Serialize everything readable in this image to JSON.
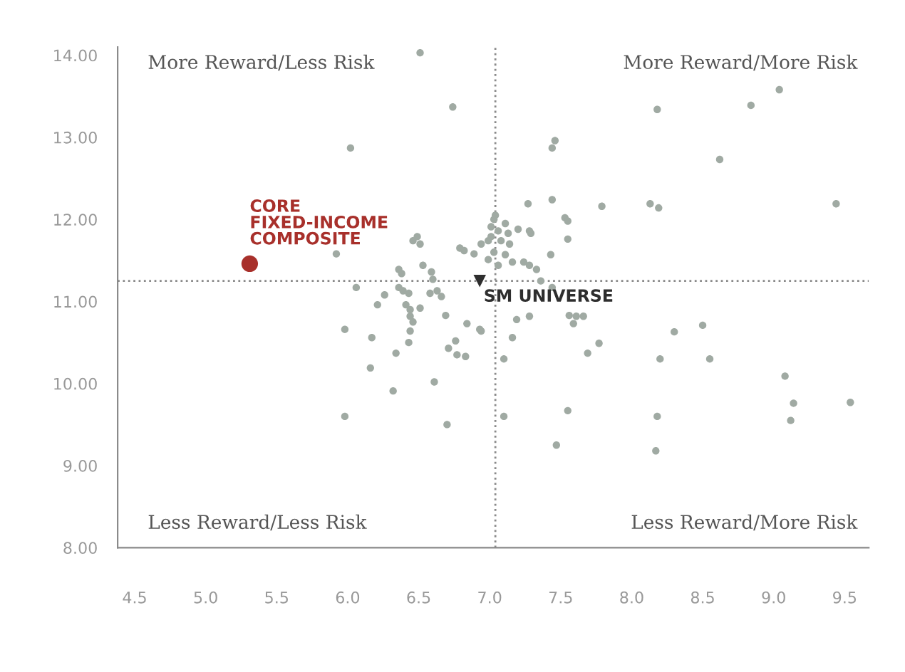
{
  "chart_data": {
    "type": "scatter",
    "xlim": [
      4.38,
      9.67
    ],
    "ylim": [
      8,
      14.1
    ],
    "xticks": [
      4.5,
      {
        "value": 5,
        "label": "5.0"
      },
      5.5,
      {
        "value": 6,
        "label": "6.0"
      },
      6.5,
      {
        "value": 7,
        "label": "7.0"
      },
      7.5,
      {
        "value": 8,
        "label": "8.0"
      },
      8.5,
      {
        "value": 9,
        "label": "9.0"
      },
      9.5
    ],
    "yticks": [
      {
        "value": 8,
        "label": "8.00"
      },
      {
        "value": 9,
        "label": "9.00"
      },
      {
        "value": 10,
        "label": "10.00"
      },
      {
        "value": 11,
        "label": "11.00"
      },
      {
        "value": 12,
        "label": "12.00"
      },
      {
        "value": 13,
        "label": "13.00"
      },
      {
        "value": 14,
        "label": "14.00"
      }
    ],
    "grid": false,
    "legend": false,
    "marker": "circle",
    "ref_lines": [
      {
        "axis": "x",
        "value": 7.04,
        "color": "#8a8a8a",
        "line_style": "dotted"
      },
      {
        "axis": "y",
        "value": 11.25,
        "color": "#8a8a8a",
        "line_style": "dotted"
      }
    ],
    "annotations": [
      "More Reward/Less Risk",
      "More Reward/More Risk",
      "Less Reward/Less Risk",
      "Less Reward/More Risk"
    ],
    "series": [
      {
        "color": "#a0aaa3",
        "x": [
          6.51,
          6.74,
          6.02,
          7.46,
          7.44,
          8.18,
          8.84,
          9.04,
          8.62,
          9.44,
          8.13,
          8.19,
          7.79,
          7.44,
          7.27,
          7.53,
          7.55,
          7.55,
          7.43,
          7.2,
          7.28,
          7.29,
          7.24,
          7.28,
          7.33,
          7.36,
          7.44,
          7.56,
          7.61,
          7.66,
          7.59,
          7.19,
          7.28,
          8.3,
          8.5,
          7.16,
          7.77,
          7.69,
          7.1,
          8.2,
          8.55,
          9.08,
          9.14,
          9.54,
          9.12,
          7.1,
          7.55,
          8.18,
          7.47,
          8.17,
          5.98,
          6.17,
          6.44,
          6.43,
          6.34,
          6.71,
          6.76,
          6.77,
          6.83,
          6.94,
          6.16,
          6.32,
          6.61,
          5.98,
          6.7,
          5.92,
          6.46,
          6.49,
          6.51,
          6.79,
          6.82,
          6.89,
          6.94,
          7.03,
          7.01,
          6.53,
          6.36,
          6.38,
          6.59,
          6.6,
          6.06,
          6.36,
          6.39,
          6.43,
          6.21,
          6.26,
          6.58,
          6.63,
          6.66,
          6.41,
          6.44,
          6.51,
          6.44,
          6.46,
          6.84,
          6.93,
          6.69,
          7.01,
          7.06,
          7.11,
          6.99,
          7.08,
          7.14,
          7.03,
          7.11,
          7.16,
          7.06,
          6.99,
          7.13,
          7.04
        ],
        "values": [
          14.03,
          13.37,
          12.87,
          12.96,
          12.87,
          13.34,
          13.39,
          13.58,
          12.73,
          12.19,
          12.19,
          12.14,
          12.16,
          12.24,
          12.19,
          12.02,
          11.98,
          11.76,
          11.57,
          11.88,
          11.86,
          11.83,
          11.48,
          11.44,
          11.39,
          11.25,
          11.17,
          10.83,
          10.82,
          10.82,
          10.73,
          10.78,
          10.82,
          10.63,
          10.71,
          10.56,
          10.49,
          10.37,
          10.3,
          10.3,
          10.3,
          10.09,
          9.76,
          9.77,
          9.55,
          9.6,
          9.67,
          9.6,
          9.25,
          9.18,
          10.66,
          10.56,
          10.64,
          10.5,
          10.37,
          10.43,
          10.52,
          10.35,
          10.33,
          10.64,
          10.19,
          9.91,
          10.02,
          9.6,
          9.5,
          11.58,
          11.74,
          11.79,
          11.7,
          11.65,
          11.62,
          11.58,
          11.7,
          12.0,
          11.79,
          11.44,
          11.39,
          11.34,
          11.36,
          11.27,
          11.17,
          11.17,
          11.13,
          11.1,
          10.96,
          11.08,
          11.1,
          11.13,
          11.06,
          10.96,
          10.9,
          10.92,
          10.82,
          10.75,
          10.73,
          10.66,
          10.83,
          11.91,
          11.86,
          11.95,
          11.74,
          11.74,
          11.7,
          11.6,
          11.57,
          11.48,
          11.44,
          11.51,
          11.83,
          12.05
        ]
      },
      {
        "name": "CORE\nFIXED-INCOME\nCOMPOSITE",
        "color": "#a8302b",
        "x": [
          5.31
        ],
        "values": [
          11.46
        ]
      },
      {
        "name": "SM UNIVERSE",
        "color": "#2e2e2e",
        "marker": "triangle",
        "x": [
          6.93
        ],
        "values": [
          11.25
        ]
      }
    ]
  }
}
